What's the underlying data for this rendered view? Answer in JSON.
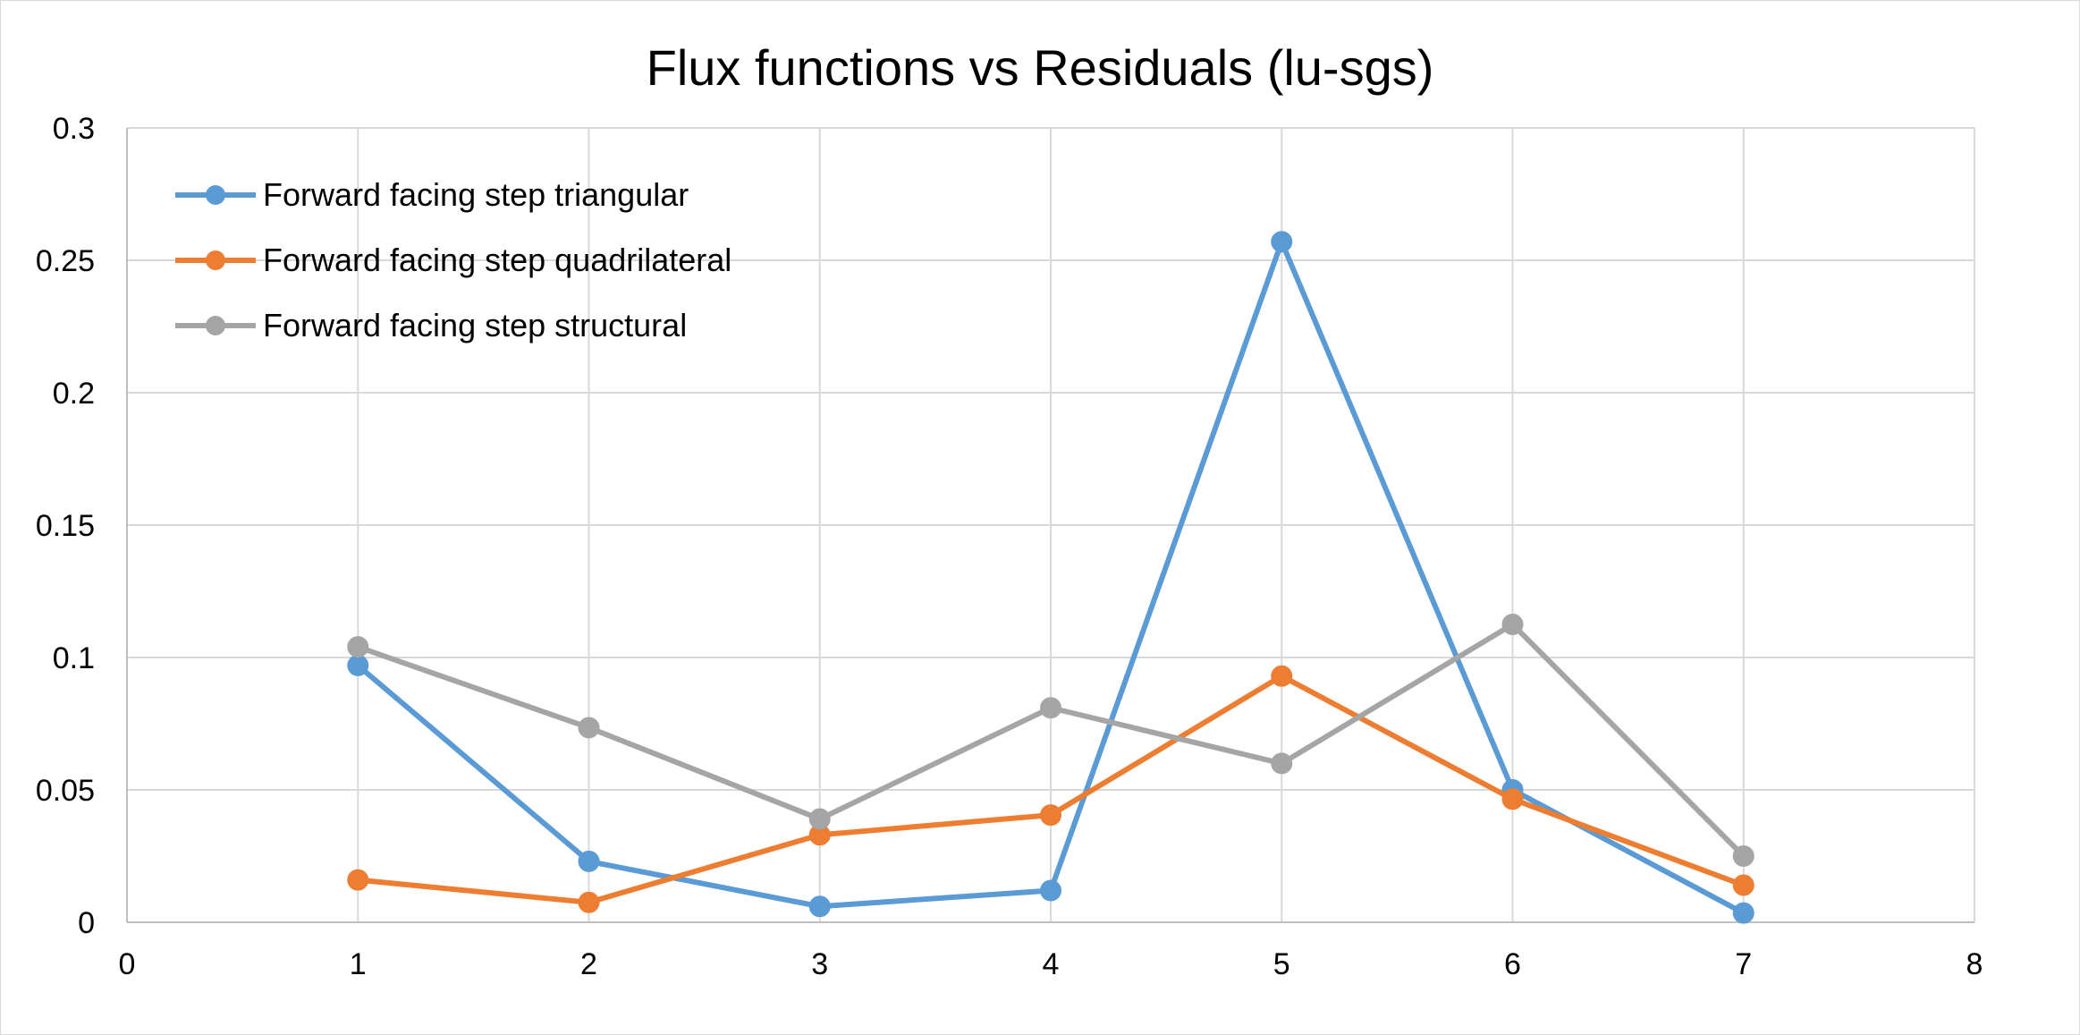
{
  "chart_data": {
    "type": "scatter",
    "title": "Flux functions vs Residuals (lu-sgs)",
    "xlabel": "",
    "ylabel": "",
    "xlim": [
      0,
      8
    ],
    "ylim": [
      0,
      0.3
    ],
    "x_ticks": [
      0,
      1,
      2,
      3,
      4,
      5,
      6,
      7,
      8
    ],
    "y_ticks": [
      0,
      0.05,
      0.1,
      0.15,
      0.2,
      0.25,
      0.3
    ],
    "grid": true,
    "legend_position": "top-left",
    "series": [
      {
        "name": "Forward facing step triangular",
        "color": "#5B9BD5",
        "x": [
          1,
          2,
          3,
          4,
          5,
          6,
          7
        ],
        "y": [
          0.097,
          0.023,
          0.006,
          0.012,
          0.257,
          0.05,
          0.0035
        ]
      },
      {
        "name": "Forward facing step quadrilateral",
        "color": "#ED7D31",
        "x": [
          1,
          2,
          3,
          4,
          5,
          6,
          7
        ],
        "y": [
          0.016,
          0.0075,
          0.033,
          0.0405,
          0.093,
          0.0465,
          0.014
        ]
      },
      {
        "name": "Forward facing step structural",
        "color": "#A5A5A5",
        "x": [
          1,
          2,
          3,
          4,
          5,
          6,
          7
        ],
        "y": [
          0.104,
          0.0735,
          0.039,
          0.081,
          0.06,
          0.1125,
          0.025
        ]
      }
    ]
  }
}
